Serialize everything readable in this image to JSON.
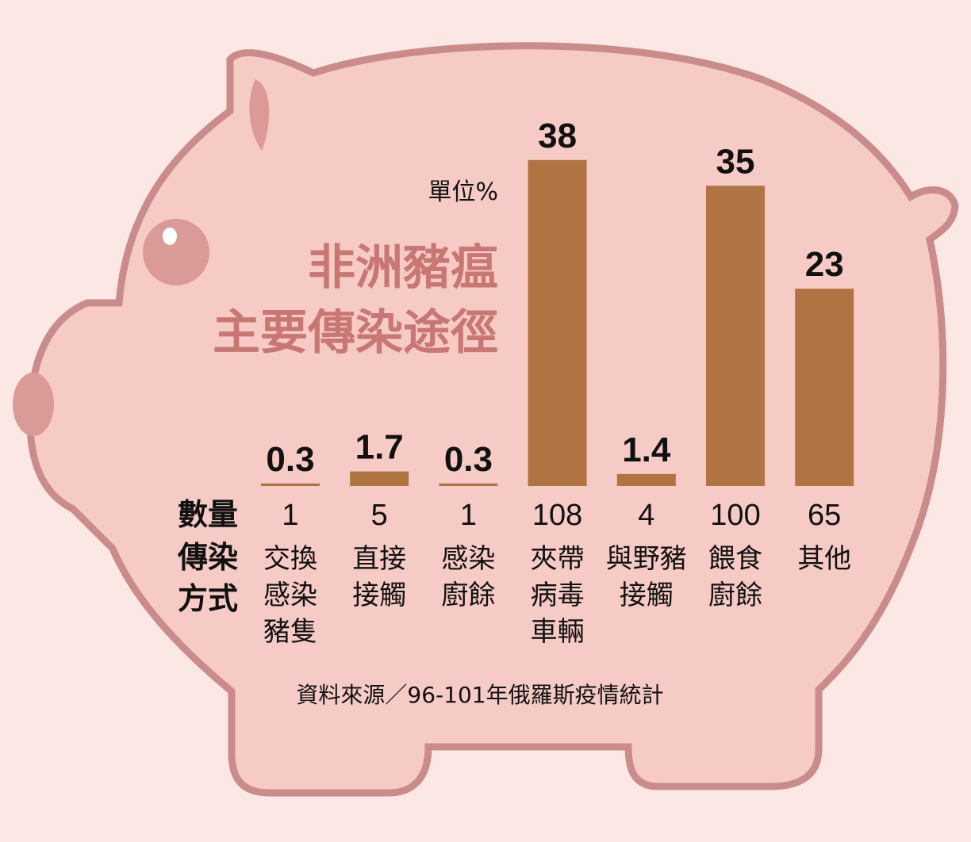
{
  "chart_data": {
    "type": "bar",
    "title": [
      "非洲豬瘟",
      "主要傳染途徑"
    ],
    "unit": "單位%",
    "color": "#b07442",
    "values": [
      0.3,
      1.7,
      0.3,
      38,
      1.4,
      35,
      23
    ],
    "count_label": "數量",
    "counts": [
      1,
      5,
      1,
      108,
      4,
      100,
      65
    ],
    "category_label": [
      "傳染",
      "方式"
    ],
    "categories": [
      [
        "交換",
        "感染",
        "豬隻"
      ],
      [
        "直接",
        "接觸"
      ],
      [
        "感染",
        "廚餘"
      ],
      [
        "夾帶",
        "病毒",
        "車輛"
      ],
      [
        "與野豬",
        "接觸"
      ],
      [
        "餵食",
        "廚餘"
      ],
      [
        "其他"
      ]
    ],
    "source": "資料來源／96-101年俄羅斯疫情統計"
  }
}
